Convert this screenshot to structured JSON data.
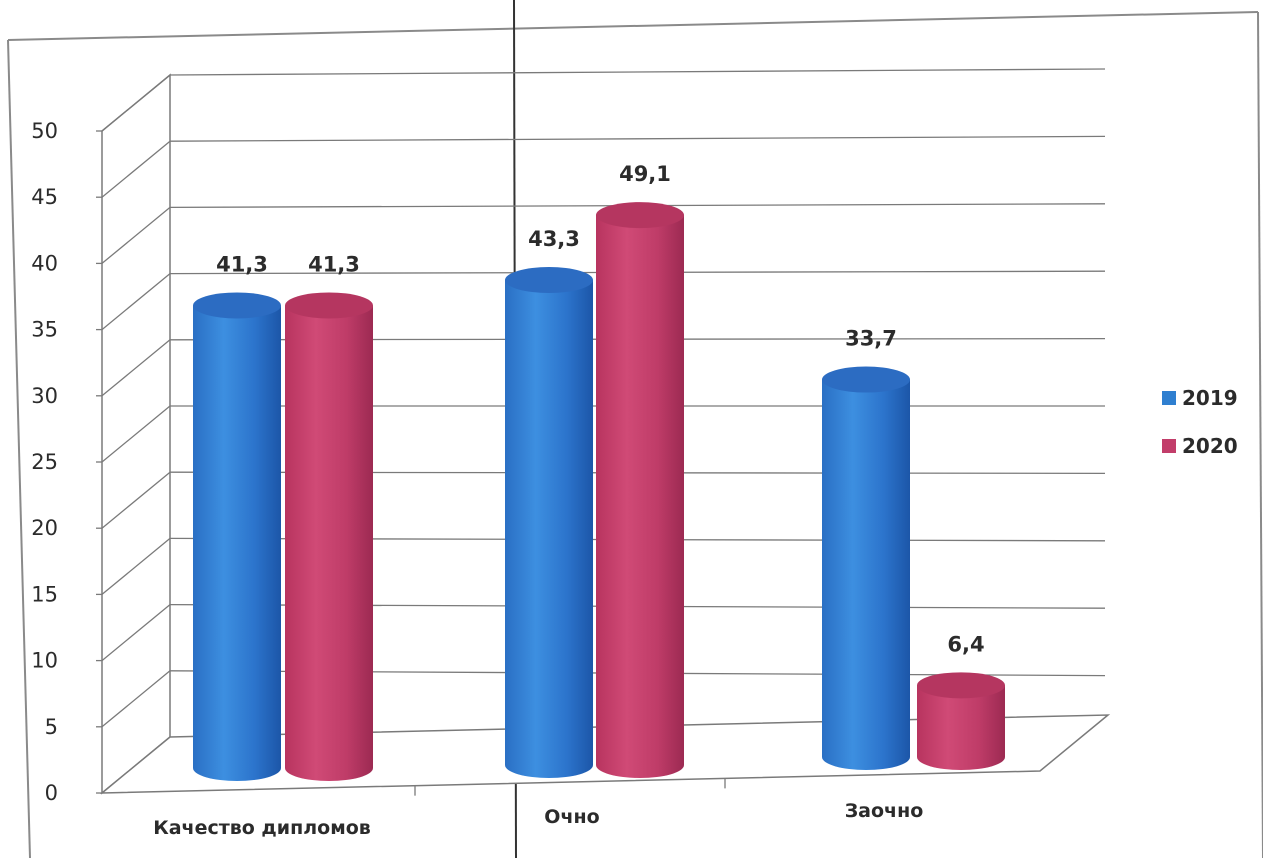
{
  "chart_data": {
    "type": "bar",
    "categories": [
      "Качество дипломов",
      "Очно",
      "Заочно"
    ],
    "series": [
      {
        "name": "2019",
        "values": [
          41.3,
          43.3,
          33.7
        ]
      },
      {
        "name": "2020",
        "values": [
          41.3,
          49.1,
          6.4
        ]
      }
    ],
    "data_labels": [
      [
        "41,3",
        "43,3",
        "33,7"
      ],
      [
        "41,3",
        "49,1",
        "6,4"
      ]
    ],
    "yticks": [
      "0",
      "5",
      "10",
      "15",
      "20",
      "25",
      "30",
      "35",
      "40",
      "45",
      "50"
    ],
    "ylim": [
      0,
      50
    ],
    "grid": true,
    "legend_position": "right",
    "style": "3d-cylinder",
    "colors": {
      "2019": "#2f7fd0",
      "2020": "#c23d6a"
    }
  }
}
